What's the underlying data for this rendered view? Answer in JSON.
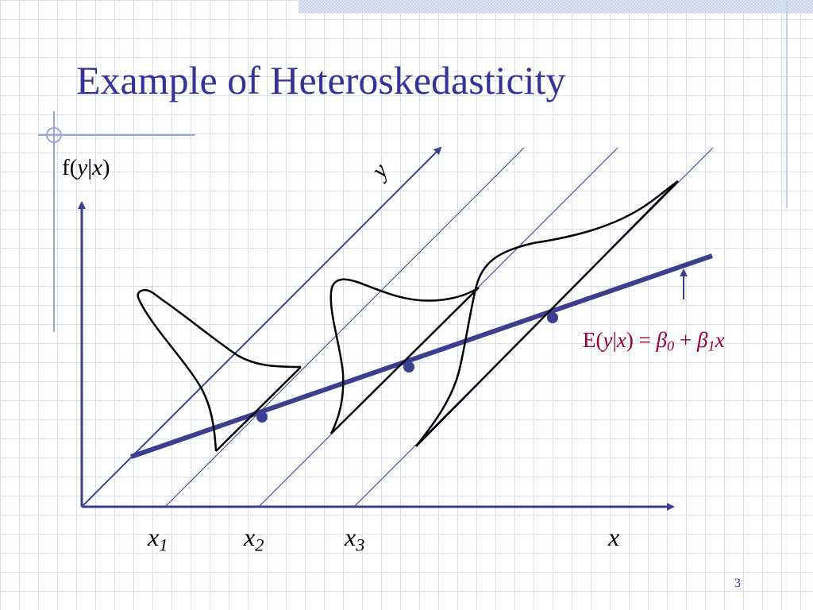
{
  "slide": {
    "title": "Example of Heteroskedasticity",
    "page_number": "3"
  },
  "diagram": {
    "y_axis_label": {
      "prefix": "f(",
      "var_y": "y",
      "bar": "|",
      "var_x": "x",
      "suffix": ")"
    },
    "diagonal_axis_label": "y",
    "x_axis_label": "x",
    "x_ticks": [
      {
        "name": "x",
        "sub": "1"
      },
      {
        "name": "x",
        "sub": "2"
      },
      {
        "name": "x",
        "sub": "3"
      }
    ],
    "regression_label": {
      "lhs_start": "E(",
      "lhs_y": "y",
      "lhs_bar": "|",
      "lhs_x": "x",
      "lhs_end": ") = ",
      "b0": "β",
      "b0_sub": "0",
      "plus": " + ",
      "b1": "β",
      "b1_sub": "1",
      "rhs_x": "x"
    },
    "colors": {
      "title": "#333399",
      "regression_line": "#3b3f8f",
      "axes": "#3b3f8f",
      "guide_lines": "#3b3f8f",
      "curves": "#000000",
      "equation": "#990033"
    }
  }
}
